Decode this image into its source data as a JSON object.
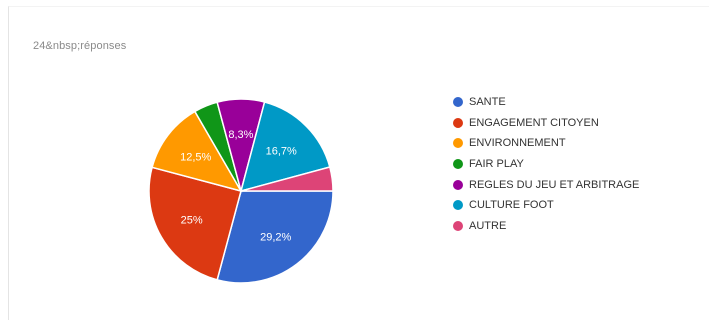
{
  "summary": {
    "responses_text": "24&nbsp;réponses"
  },
  "chart_data": {
    "type": "pie",
    "categories": [
      "SANTE",
      "ENGAGEMENT CITOYEN",
      "ENVIRONNEMENT",
      "FAIR PLAY",
      "REGLES DU JEU ET ARBITRAGE",
      "CULTURE FOOT",
      "AUTRE"
    ],
    "values": [
      29.2,
      25,
      12.5,
      4.2,
      8.3,
      16.7,
      4.2
    ],
    "slice_labels": [
      "29,2%",
      "25%",
      "12,5%",
      "",
      "8,3%",
      "16,7%",
      ""
    ],
    "colors": [
      "#3366cc",
      "#dc3912",
      "#ff9900",
      "#109618",
      "#990099",
      "#0099c6",
      "#dd4477"
    ],
    "legend_position": "right"
  }
}
